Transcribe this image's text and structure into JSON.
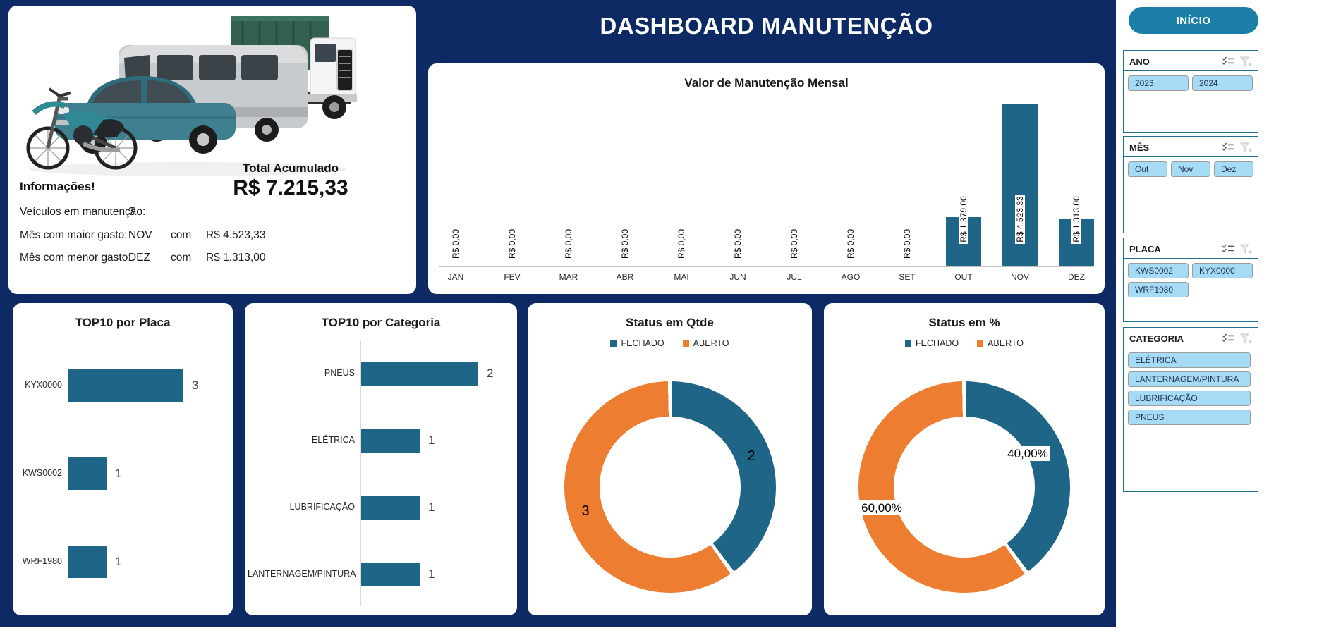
{
  "header": {
    "title": "DASHBOARD MANUTENÇÃO"
  },
  "info_panel": {
    "heading": "Informações!",
    "rows": [
      {
        "label": "Veículos em manutenção:",
        "month": "3",
        "conj": "",
        "value": ""
      },
      {
        "label": "Mês com maior gasto:",
        "month": "NOV",
        "conj": "com",
        "value": "R$ 4.523,33"
      },
      {
        "label": "Mês com menor gasto:",
        "month": "DEZ",
        "conj": "com",
        "value": "R$ 1.313,00"
      }
    ],
    "total_label": "Total Acumulado",
    "total_value": "R$ 7.215,33",
    "illustration": "fleet-vehicles-photo"
  },
  "sidebar": {
    "inicio_label": "INÍCIO",
    "slicers": [
      {
        "title": "ANO",
        "layout": "half",
        "items": [
          "2023",
          "2024"
        ],
        "icons": [
          "multi-select-icon",
          "clear-filter-icon"
        ]
      },
      {
        "title": "MÊS",
        "layout": "third",
        "items": [
          "Out",
          "Nov",
          "Dez"
        ],
        "icons": [
          "multi-select-icon",
          "clear-filter-icon"
        ]
      },
      {
        "title": "PLACA",
        "layout": "half",
        "items": [
          "KWS0002",
          "KYX0000",
          "WRF1980"
        ],
        "icons": [
          "multi-select-icon",
          "clear-filter-icon"
        ]
      },
      {
        "title": "CATEGORIA",
        "layout": "full",
        "items": [
          "ELÉTRICA",
          "LANTERNAGEM/PINTURA",
          "LUBRIFICAÇÃO",
          "PNEUS"
        ],
        "icons": [
          "multi-select-icon",
          "clear-filter-icon"
        ]
      }
    ]
  },
  "colors": {
    "navy_background": "#0E2A64",
    "teal_series": "#1F6587",
    "orange_series": "#ED7D31",
    "slicer_item_blue": "#A6DBF5",
    "button_teal": "#1B7EA6"
  },
  "chart_data": [
    {
      "id": "monthly",
      "type": "bar",
      "title": "Valor de Manutenção Mensal",
      "categories": [
        "JAN",
        "FEV",
        "MAR",
        "ABR",
        "MAI",
        "JUN",
        "JUL",
        "AGO",
        "SET",
        "OUT",
        "NOV",
        "DEZ"
      ],
      "values": [
        0,
        0,
        0,
        0,
        0,
        0,
        0,
        0,
        0,
        1379.0,
        4523.33,
        1313.0
      ],
      "value_labels": [
        "R$ 0,00",
        "R$ 0,00",
        "R$ 0,00",
        "R$ 0,00",
        "R$ 0,00",
        "R$ 0,00",
        "R$ 0,00",
        "R$ 0,00",
        "R$ 0,00",
        "R$ 1.379,00",
        "R$ 4.523,33",
        "R$ 1.313,00"
      ],
      "ylim": [
        0,
        4523.33
      ],
      "grid": false,
      "legend_position": "none",
      "bar_color": "#1F6587"
    },
    {
      "id": "top_placa",
      "type": "bar",
      "orientation": "horizontal",
      "title": "TOP10 por Placa",
      "categories": [
        "KYX0000",
        "KWS0002",
        "WRF1980"
      ],
      "values": [
        3,
        1,
        1
      ],
      "value_labels": [
        "3",
        "1",
        "1"
      ],
      "xlim": [
        0,
        3
      ],
      "grid": false,
      "bar_color": "#1F6587"
    },
    {
      "id": "top_categoria",
      "type": "bar",
      "orientation": "horizontal",
      "title": "TOP10 por Categoria",
      "categories": [
        "PNEUS",
        "ELÉTRICA",
        "LUBRIFICAÇÃO",
        "LANTERNAGEM/PINTURA"
      ],
      "values": [
        2,
        1,
        1,
        1
      ],
      "value_labels": [
        "2",
        "1",
        "1",
        "1"
      ],
      "xlim": [
        0,
        2
      ],
      "grid": false,
      "bar_color": "#1F6587"
    },
    {
      "id": "status_qtde",
      "type": "pie",
      "subtype": "donut",
      "title": "Status em Qtde",
      "legend": [
        "FECHADO",
        "ABERTO"
      ],
      "legend_position": "top",
      "values": [
        2,
        3
      ],
      "value_labels": [
        "2",
        "3"
      ],
      "slice_colors": [
        "#1F6587",
        "#ED7D31"
      ]
    },
    {
      "id": "status_pct",
      "type": "pie",
      "subtype": "donut",
      "title": "Status em %",
      "legend": [
        "FECHADO",
        "ABERTO"
      ],
      "legend_position": "top",
      "values": [
        40,
        60
      ],
      "value_labels": [
        "40,00%",
        "60,00%"
      ],
      "slice_colors": [
        "#1F6587",
        "#ED7D31"
      ]
    }
  ]
}
